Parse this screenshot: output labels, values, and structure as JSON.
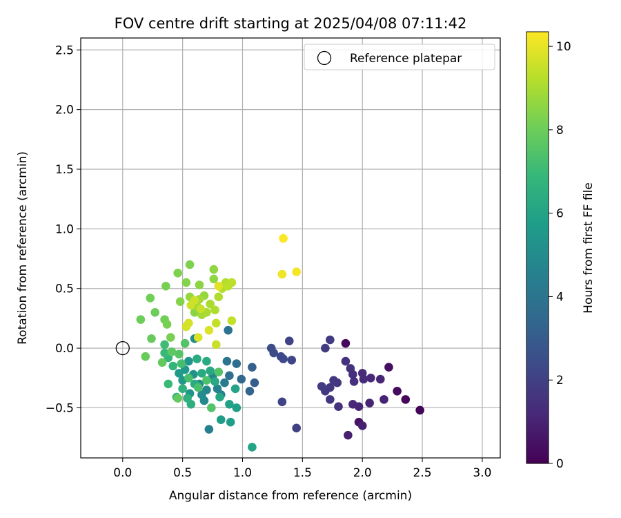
{
  "chart_data": {
    "type": "scatter",
    "title": "FOV centre drift starting at 2025/04/08 07:11:42",
    "xlabel": "Angular distance from reference (arcmin)",
    "ylabel": "Rotation from reference (arcmin)",
    "xlim": [
      -0.35,
      3.15
    ],
    "ylim": [
      -0.92,
      2.6
    ],
    "x_ticks": [
      0.0,
      0.5,
      1.0,
      1.5,
      2.0,
      2.5,
      3.0
    ],
    "x_tick_labels": [
      "0.0",
      "0.5",
      "1.0",
      "1.5",
      "2.0",
      "2.5",
      "3.0"
    ],
    "y_ticks": [
      -0.5,
      0.0,
      0.5,
      1.0,
      1.5,
      2.0,
      2.5
    ],
    "y_tick_labels": [
      "−0.5",
      "0.0",
      "0.5",
      "1.0",
      "1.5",
      "2.0",
      "2.5"
    ],
    "grid": true,
    "legend": {
      "position": "top-right",
      "entries": [
        {
          "label": "Reference platepar",
          "marker": "open-circle"
        }
      ]
    },
    "reference_point": {
      "x": 0.0,
      "y": 0.0
    },
    "colorbar": {
      "label": "Hours from first FF file",
      "colormap": "viridis",
      "range": [
        0,
        10.35
      ],
      "ticks": [
        0,
        2,
        4,
        6,
        8,
        10
      ],
      "tick_labels": [
        "0",
        "2",
        "4",
        "6",
        "8",
        "10"
      ],
      "stops": [
        "#440154",
        "#482878",
        "#3e4989",
        "#31688e",
        "#26828e",
        "#1f9e89",
        "#35b779",
        "#6ece58",
        "#b5de2b",
        "#fde725"
      ]
    },
    "points": [
      {
        "x": 1.86,
        "y": 0.04,
        "t": 0.2
      },
      {
        "x": 2.48,
        "y": -0.52,
        "t": 0.1
      },
      {
        "x": 2.36,
        "y": -0.43,
        "t": 0.2
      },
      {
        "x": 2.29,
        "y": -0.36,
        "t": 0.3
      },
      {
        "x": 2.22,
        "y": -0.16,
        "t": 0.4
      },
      {
        "x": 1.97,
        "y": -0.62,
        "t": 0.5
      },
      {
        "x": 2.0,
        "y": -0.65,
        "t": 0.9
      },
      {
        "x": 1.88,
        "y": -0.73,
        "t": 0.9
      },
      {
        "x": 2.06,
        "y": -0.46,
        "t": 1.0
      },
      {
        "x": 2.18,
        "y": -0.43,
        "t": 1.0
      },
      {
        "x": 1.97,
        "y": -0.49,
        "t": 1.1
      },
      {
        "x": 1.92,
        "y": -0.47,
        "t": 1.2
      },
      {
        "x": 2.15,
        "y": -0.26,
        "t": 1.1
      },
      {
        "x": 2.07,
        "y": -0.25,
        "t": 1.2
      },
      {
        "x": 2.01,
        "y": -0.26,
        "t": 1.3
      },
      {
        "x": 2.0,
        "y": -0.21,
        "t": 1.3
      },
      {
        "x": 1.93,
        "y": -0.28,
        "t": 1.4
      },
      {
        "x": 1.92,
        "y": -0.22,
        "t": 1.4
      },
      {
        "x": 1.9,
        "y": -0.17,
        "t": 1.5
      },
      {
        "x": 1.86,
        "y": -0.11,
        "t": 1.5
      },
      {
        "x": 1.8,
        "y": -0.49,
        "t": 1.5
      },
      {
        "x": 1.73,
        "y": -0.43,
        "t": 1.6
      },
      {
        "x": 1.79,
        "y": -0.29,
        "t": 1.6
      },
      {
        "x": 1.76,
        "y": -0.27,
        "t": 1.7
      },
      {
        "x": 1.73,
        "y": -0.33,
        "t": 1.7
      },
      {
        "x": 1.69,
        "y": -0.36,
        "t": 1.7
      },
      {
        "x": 1.66,
        "y": -0.32,
        "t": 1.8
      },
      {
        "x": 1.73,
        "y": 0.07,
        "t": 1.8
      },
      {
        "x": 1.69,
        "y": -0.0,
        "t": 1.8
      },
      {
        "x": 1.45,
        "y": -0.67,
        "t": 2.0
      },
      {
        "x": 1.33,
        "y": -0.45,
        "t": 2.1
      },
      {
        "x": 1.39,
        "y": 0.06,
        "t": 2.1
      },
      {
        "x": 1.41,
        "y": -0.1,
        "t": 2.2
      },
      {
        "x": 1.34,
        "y": -0.09,
        "t": 2.3
      },
      {
        "x": 1.32,
        "y": -0.07,
        "t": 2.3
      },
      {
        "x": 1.26,
        "y": -0.04,
        "t": 2.4
      },
      {
        "x": 1.24,
        "y": 0.0,
        "t": 2.4
      },
      {
        "x": 1.1,
        "y": -0.29,
        "t": 3.0
      },
      {
        "x": 1.08,
        "y": -0.16,
        "t": 3.1
      },
      {
        "x": 1.06,
        "y": -0.36,
        "t": 3.3
      },
      {
        "x": 0.99,
        "y": -0.26,
        "t": 3.5
      },
      {
        "x": 0.95,
        "y": -0.13,
        "t": 3.7
      },
      {
        "x": 0.89,
        "y": -0.23,
        "t": 3.8
      },
      {
        "x": 0.88,
        "y": 0.15,
        "t": 3.9
      },
      {
        "x": 0.87,
        "y": -0.11,
        "t": 4.0
      },
      {
        "x": 0.85,
        "y": -0.29,
        "t": 4.2
      },
      {
        "x": 0.82,
        "y": -0.39,
        "t": 4.4
      },
      {
        "x": 0.79,
        "y": -0.34,
        "t": 4.6
      },
      {
        "x": 0.72,
        "y": -0.68,
        "t": 4.5
      },
      {
        "x": 0.75,
        "y": -0.24,
        "t": 4.7
      },
      {
        "x": 0.7,
        "y": -0.35,
        "t": 4.8
      },
      {
        "x": 0.68,
        "y": -0.44,
        "t": 4.9
      },
      {
        "x": 0.66,
        "y": -0.39,
        "t": 5.0
      },
      {
        "x": 0.64,
        "y": -0.3,
        "t": 5.1
      },
      {
        "x": 0.6,
        "y": 0.08,
        "t": 5.0
      },
      {
        "x": 0.59,
        "y": -0.22,
        "t": 5.2
      },
      {
        "x": 0.56,
        "y": -0.38,
        "t": 5.3
      },
      {
        "x": 0.55,
        "y": -0.11,
        "t": 5.4
      },
      {
        "x": 0.52,
        "y": -0.18,
        "t": 5.5
      },
      {
        "x": 0.5,
        "y": -0.27,
        "t": 5.5
      },
      {
        "x": 0.47,
        "y": -0.21,
        "t": 5.6
      },
      {
        "x": 0.82,
        "y": -0.6,
        "t": 5.7
      },
      {
        "x": 0.9,
        "y": -0.62,
        "t": 5.8
      },
      {
        "x": 0.95,
        "y": -0.5,
        "t": 5.8
      },
      {
        "x": 1.08,
        "y": -0.83,
        "t": 6.0
      },
      {
        "x": 0.89,
        "y": -0.47,
        "t": 5.9
      },
      {
        "x": 0.94,
        "y": -0.34,
        "t": 6.0
      },
      {
        "x": 0.81,
        "y": -0.41,
        "t": 6.1
      },
      {
        "x": 0.77,
        "y": -0.28,
        "t": 6.2
      },
      {
        "x": 0.73,
        "y": -0.19,
        "t": 6.2
      },
      {
        "x": 0.7,
        "y": -0.11,
        "t": 6.3
      },
      {
        "x": 0.66,
        "y": -0.21,
        "t": 6.3
      },
      {
        "x": 0.62,
        "y": -0.09,
        "t": 6.4
      },
      {
        "x": 0.6,
        "y": -0.3,
        "t": 6.4
      },
      {
        "x": 0.57,
        "y": -0.47,
        "t": 6.5
      },
      {
        "x": 0.54,
        "y": -0.42,
        "t": 6.6
      },
      {
        "x": 0.5,
        "y": -0.34,
        "t": 6.6
      },
      {
        "x": 0.45,
        "y": -0.41,
        "t": 6.7
      },
      {
        "x": 0.42,
        "y": -0.15,
        "t": 6.8
      },
      {
        "x": 0.38,
        "y": -0.08,
        "t": 6.8
      },
      {
        "x": 0.38,
        "y": -0.3,
        "t": 7.0
      },
      {
        "x": 0.35,
        "y": -0.04,
        "t": 7.0
      },
      {
        "x": 0.35,
        "y": 0.03,
        "t": 7.1
      },
      {
        "x": 0.49,
        "y": -0.13,
        "t": 7.2
      },
      {
        "x": 0.55,
        "y": -0.25,
        "t": 7.3
      },
      {
        "x": 0.63,
        "y": -0.33,
        "t": 7.3
      },
      {
        "x": 0.7,
        "y": -0.27,
        "t": 7.4
      },
      {
        "x": 0.74,
        "y": -0.5,
        "t": 7.5
      },
      {
        "x": 0.8,
        "y": -0.2,
        "t": 7.5
      },
      {
        "x": 0.52,
        "y": 0.04,
        "t": 7.5
      },
      {
        "x": 0.47,
        "y": -0.05,
        "t": 7.6
      },
      {
        "x": 0.41,
        "y": -0.03,
        "t": 7.7
      },
      {
        "x": 0.33,
        "y": -0.12,
        "t": 7.8
      },
      {
        "x": 0.46,
        "y": -0.42,
        "t": 7.8
      },
      {
        "x": 0.19,
        "y": -0.07,
        "t": 7.9
      },
      {
        "x": 0.24,
        "y": 0.08,
        "t": 7.9
      },
      {
        "x": 0.15,
        "y": 0.24,
        "t": 8.0
      },
      {
        "x": 0.27,
        "y": 0.3,
        "t": 8.0
      },
      {
        "x": 0.23,
        "y": 0.42,
        "t": 8.1
      },
      {
        "x": 0.35,
        "y": 0.24,
        "t": 8.1
      },
      {
        "x": 0.37,
        "y": 0.2,
        "t": 8.2
      },
      {
        "x": 0.4,
        "y": 0.09,
        "t": 8.2
      },
      {
        "x": 0.36,
        "y": 0.52,
        "t": 8.2
      },
      {
        "x": 0.46,
        "y": 0.63,
        "t": 8.3
      },
      {
        "x": 0.56,
        "y": 0.7,
        "t": 8.3
      },
      {
        "x": 0.48,
        "y": 0.39,
        "t": 8.4
      },
      {
        "x": 0.53,
        "y": 0.55,
        "t": 8.4
      },
      {
        "x": 0.6,
        "y": 0.3,
        "t": 8.5
      },
      {
        "x": 0.64,
        "y": 0.53,
        "t": 8.5
      },
      {
        "x": 0.76,
        "y": 0.66,
        "t": 8.6
      },
      {
        "x": 0.76,
        "y": 0.58,
        "t": 8.6
      },
      {
        "x": 0.68,
        "y": 0.44,
        "t": 8.7
      },
      {
        "x": 0.56,
        "y": 0.43,
        "t": 8.7
      },
      {
        "x": 0.59,
        "y": 0.38,
        "t": 8.8
      },
      {
        "x": 0.62,
        "y": 0.35,
        "t": 8.8
      },
      {
        "x": 0.64,
        "y": 0.41,
        "t": 8.9
      },
      {
        "x": 0.66,
        "y": 0.28,
        "t": 8.9
      },
      {
        "x": 0.7,
        "y": 0.3,
        "t": 9.0
      },
      {
        "x": 0.73,
        "y": 0.37,
        "t": 9.0
      },
      {
        "x": 0.77,
        "y": 0.32,
        "t": 9.1
      },
      {
        "x": 0.8,
        "y": 0.43,
        "t": 9.1
      },
      {
        "x": 0.83,
        "y": 0.5,
        "t": 9.2
      },
      {
        "x": 0.86,
        "y": 0.55,
        "t": 9.2
      },
      {
        "x": 0.91,
        "y": 0.55,
        "t": 9.3
      },
      {
        "x": 0.88,
        "y": 0.52,
        "t": 9.3
      },
      {
        "x": 0.91,
        "y": 0.23,
        "t": 9.4
      },
      {
        "x": 0.78,
        "y": 0.21,
        "t": 9.4
      },
      {
        "x": 0.78,
        "y": 0.03,
        "t": 9.5
      },
      {
        "x": 0.65,
        "y": 0.33,
        "t": 9.5
      },
      {
        "x": 0.6,
        "y": 0.4,
        "t": 9.6
      },
      {
        "x": 0.57,
        "y": 0.36,
        "t": 9.6
      },
      {
        "x": 0.55,
        "y": 0.21,
        "t": 9.7
      },
      {
        "x": 0.53,
        "y": 0.18,
        "t": 9.7
      },
      {
        "x": 0.72,
        "y": 0.15,
        "t": 9.8
      },
      {
        "x": 0.63,
        "y": 0.09,
        "t": 9.8
      },
      {
        "x": 0.8,
        "y": 0.52,
        "t": 9.9
      },
      {
        "x": 1.33,
        "y": 0.62,
        "t": 10.1
      },
      {
        "x": 1.45,
        "y": 0.64,
        "t": 10.2
      },
      {
        "x": 1.34,
        "y": 0.92,
        "t": 10.3
      }
    ]
  }
}
